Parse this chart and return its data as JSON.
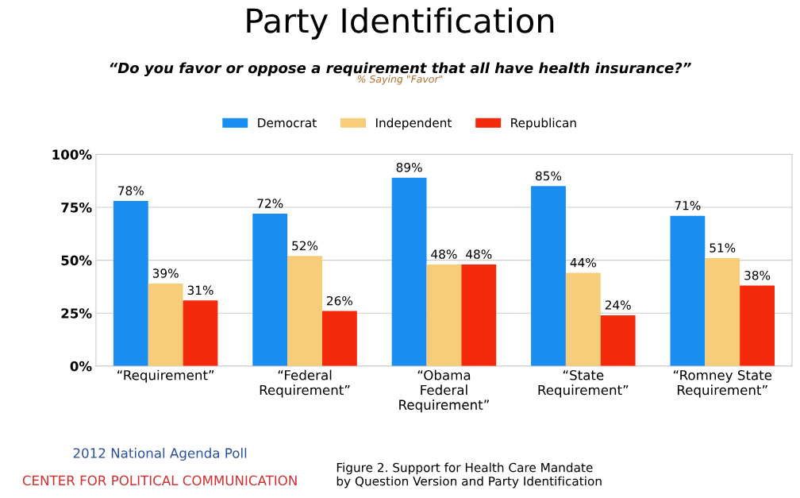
{
  "chart_data": {
    "type": "bar",
    "title": "Party Identification",
    "subtitle": "“Do you favor or oppose a requirement that all have health insurance?”",
    "categories": [
      "“Requirement”",
      "“Federal\nRequirement”",
      "“Obama\nFederal\nRequirement”",
      "“State\nRequirement”",
      "“Romney State\nRequirement”"
    ],
    "series": [
      {
        "name": "Democrat",
        "color": "#1a8ef0",
        "values": [
          78,
          72,
          89,
          85,
          71
        ],
        "value_labels": [
          "78%",
          "72%",
          "89%",
          "85%",
          "71%"
        ]
      },
      {
        "name": "Independent",
        "color": "#f7cd7c",
        "values": [
          39,
          52,
          48,
          44,
          51
        ],
        "value_labels": [
          "39%",
          "52%",
          "48%",
          "44%",
          "51%"
        ]
      },
      {
        "name": "Republican",
        "color": "#f52a0c",
        "values": [
          31,
          26,
          48,
          24,
          38
        ],
        "value_labels": [
          "31%",
          "26%",
          "48%",
          "24%",
          "38%"
        ]
      }
    ],
    "ylim": [
      0,
      100
    ],
    "yticks": [
      {
        "value": 0,
        "label": "0%"
      },
      {
        "value": 25,
        "label": "25%"
      },
      {
        "value": 50,
        "label": "50%"
      },
      {
        "value": 75,
        "label": "75%"
      },
      {
        "value": 100,
        "label": "100%"
      }
    ],
    "grid": "y",
    "legend": "top",
    "annotations": [
      "% Saying \"Favor\"",
      "2012 National Agenda Poll",
      "CENTER FOR POLITICAL COMMUNICATION",
      "Figure 2. Support for Health Care Mandate\nby Question Version and Party Identification"
    ]
  }
}
